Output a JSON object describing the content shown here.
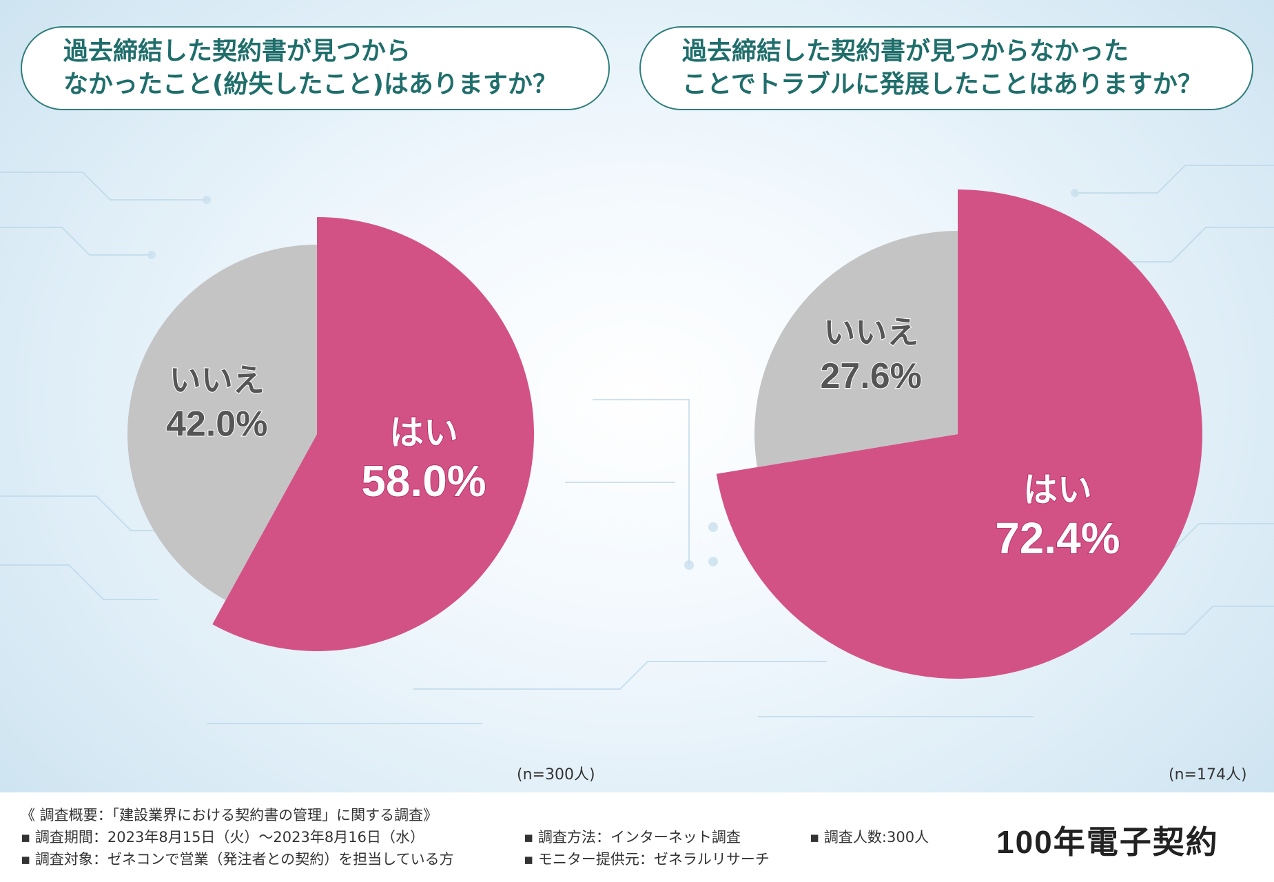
{
  "chart_data": [
    {
      "type": "pie",
      "title": "過去締結した契約書が見つからなかったこと(紛失したこと)はありますか？",
      "title_lines": [
        "過去締結した契約書が見つから",
        "なかったこと(紛失したこと)はありますか？"
      ],
      "slices": [
        {
          "label": "はい",
          "value": 58.0,
          "value_label": "58.0%",
          "color": "#d35286"
        },
        {
          "label": "いいえ",
          "value": 42.0,
          "value_label": "42.0%",
          "color": "#c4c4c4"
        }
      ],
      "sample": "(n=300人)"
    },
    {
      "type": "pie",
      "title": "過去締結した契約書が見つからなかったことでトラブルに発展したことはありますか？",
      "title_lines": [
        "過去締結した契約書が見つからなかった",
        "ことでトラブルに発展したことはありますか？"
      ],
      "slices": [
        {
          "label": "はい",
          "value": 72.4,
          "value_label": "72.4%",
          "color": "#d35286"
        },
        {
          "label": "いいえ",
          "value": 27.6,
          "value_label": "27.6%",
          "color": "#c4c4c4"
        }
      ],
      "sample": "(n=174人)"
    }
  ],
  "footer": {
    "overview": "《 調査概要：「建設業界における契約書の管理」に関する調査》",
    "period": "▪ 調査期間：2023年8月15日（火）～2023年8月16日（水）",
    "target": "▪ 調査対象：ゼネコンで営業（発注者との契約）を担当している方",
    "method": "▪ 調査方法：インターネット調査",
    "provider": "▪ モニター提供元：ゼネラルリサーチ",
    "count": "▪ 調査人数:300人"
  },
  "brand": {
    "number": "100",
    "name": "年電子契約"
  }
}
